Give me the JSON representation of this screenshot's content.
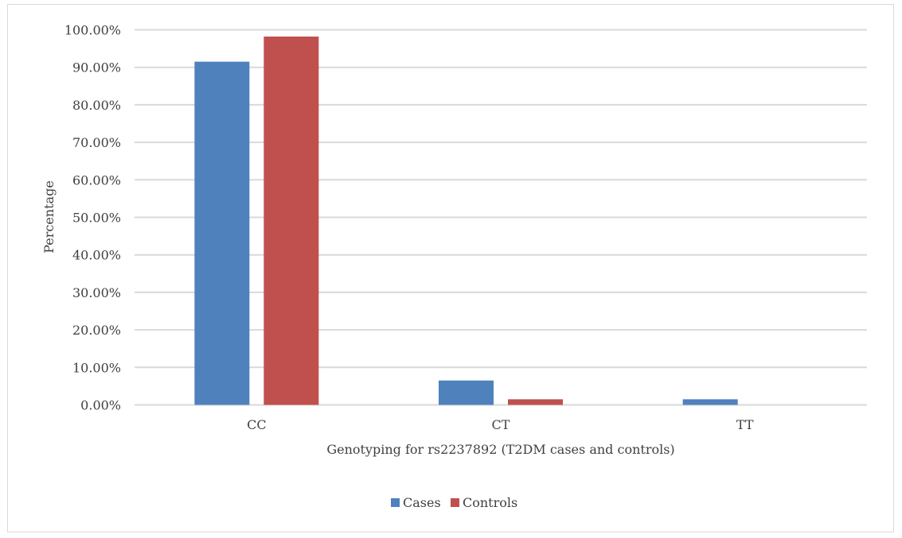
{
  "chart_data": {
    "type": "bar",
    "categories": [
      "CC",
      "CT",
      "TT"
    ],
    "series": [
      {
        "name": "Cases",
        "values": [
          91.5,
          6.5,
          1.5
        ],
        "color": "#4f81bd"
      },
      {
        "name": "Controls",
        "values": [
          98.2,
          1.5,
          0.0
        ],
        "color": "#c0504d"
      }
    ],
    "xlabel": "Genotyping for rs2237892 (T2DM cases and controls)",
    "ylabel": "Percentage",
    "ylim": [
      0,
      100
    ],
    "yticks": [
      0,
      10,
      20,
      30,
      40,
      50,
      60,
      70,
      80,
      90,
      100
    ],
    "ytick_labels": [
      "0.00%",
      "10.00%",
      "20.00%",
      "30.00%",
      "40.00%",
      "50.00%",
      "60.00%",
      "70.00%",
      "80.00%",
      "90.00%",
      "100.00%"
    ],
    "grid": true,
    "gridline_color": "#d9d9d9",
    "legend_position": "bottom"
  }
}
